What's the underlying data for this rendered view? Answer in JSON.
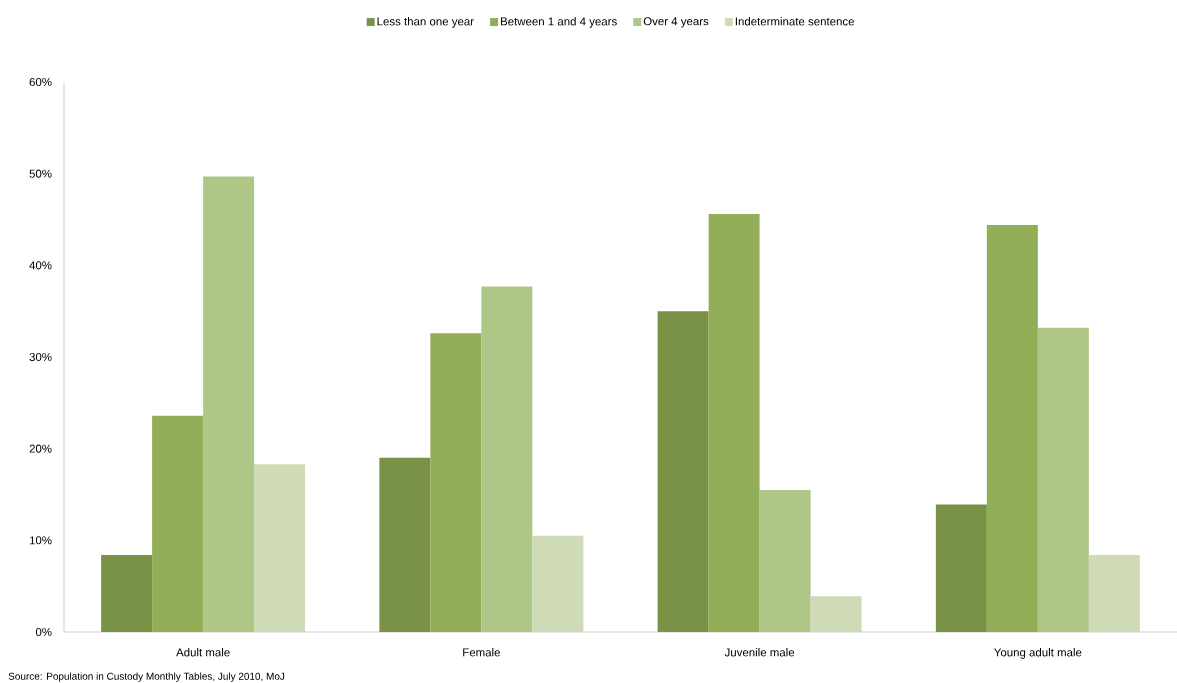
{
  "chart_data": {
    "type": "bar",
    "categories": [
      "Adult male",
      "Female",
      "Juvenile male",
      "Young adult male"
    ],
    "series": [
      {
        "name": "Less than one year",
        "color": "#7a9245",
        "values": [
          8.4,
          19.0,
          35.0,
          13.9
        ]
      },
      {
        "name": "Between 1 and 4 years",
        "color": "#92ae56",
        "values": [
          23.6,
          32.6,
          45.6,
          44.4
        ]
      },
      {
        "name": "Over 4 years",
        "color": "#aec686",
        "values": [
          49.7,
          37.7,
          15.5,
          33.2
        ]
      },
      {
        "name": "Indeterminate sentence",
        "color": "#cfdbb7",
        "values": [
          18.3,
          10.5,
          3.9,
          8.4
        ]
      }
    ],
    "ylim": [
      0,
      60
    ],
    "yticks": [
      {
        "value": 0,
        "label": "0%"
      },
      {
        "value": 10,
        "label": "10%"
      },
      {
        "value": 20,
        "label": "20%"
      },
      {
        "value": 30,
        "label": "30%"
      },
      {
        "value": 40,
        "label": "40%"
      },
      {
        "value": 50,
        "label": "50%"
      },
      {
        "value": 60,
        "label": "60%"
      }
    ],
    "legend": "top",
    "annotations": [
      "Source: Population in Custody Monthly Tables,  July 2010, MoJ"
    ]
  }
}
